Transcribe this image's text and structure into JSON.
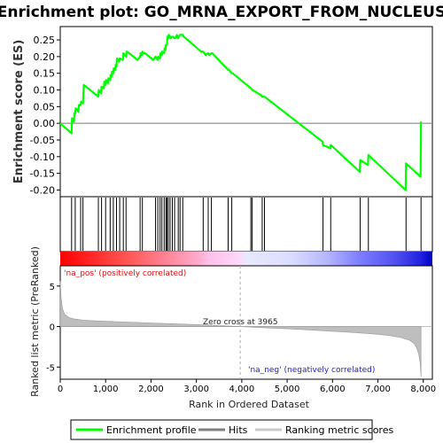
{
  "chart_data": {
    "type": "line",
    "title": "Enrichment plot: GO_MRNA_EXPORT_FROM_NUCLEUS",
    "panels": {
      "enrichment": {
        "ylabel": "Enrichment score (ES)",
        "ylim": [
          -0.22,
          0.29
        ],
        "yticks": [
          -0.2,
          -0.15,
          -0.1,
          -0.05,
          0.0,
          0.05,
          0.1,
          0.15,
          0.2,
          0.25
        ],
        "ytick_labels": [
          "-0.20",
          "-0.15",
          "-0.10",
          "-0.05",
          "0.00",
          "0.05",
          "0.10",
          "0.15",
          "0.20",
          "0.25"
        ],
        "series": [
          {
            "name": "Enrichment profile",
            "color": "#00ff00",
            "x": [
              0,
              250,
              260,
              300,
              310,
              330,
              340,
              400,
              410,
              450,
              460,
              500,
              520,
              840,
              850,
              900,
              910,
              960,
              970,
              1000,
              1010,
              1050,
              1060,
              1100,
              1110,
              1130,
              1140,
              1170,
              1180,
              1210,
              1220,
              1240,
              1250,
              1300,
              1310,
              1380,
              1390,
              1450,
              1460,
              1520,
              1700,
              1760,
              1770,
              1800,
              1810,
              1850,
              1870,
              2050,
              2100,
              2150,
              2160,
              2200,
              2210,
              2240,
              2250,
              2290,
              2300,
              2320,
              2330,
              2350,
              2360,
              2380,
              2390,
              2420,
              2430,
              2470,
              2480,
              2520,
              2530,
              2560,
              2570,
              2600,
              2610,
              2640,
              2650,
              2700,
              2720,
              2850,
              3100,
              3150,
              3200,
              3260,
              3280,
              3330,
              3350,
              3700,
              3720,
              3780,
              3800,
              4200,
              4230,
              4420,
              4450,
              4500,
              5780,
              5790,
              5950,
              5960,
              6600,
              6610,
              6780,
              6790,
              7610,
              7620,
              7940,
              7950
            ],
            "y": [
              0.0,
              -0.03,
              0.015,
              0.005,
              0.03,
              0.03,
              0.045,
              0.035,
              0.055,
              0.055,
              0.065,
              0.06,
              0.115,
              0.08,
              0.1,
              0.09,
              0.11,
              0.105,
              0.125,
              0.115,
              0.13,
              0.12,
              0.135,
              0.13,
              0.145,
              0.14,
              0.155,
              0.15,
              0.165,
              0.16,
              0.175,
              0.17,
              0.195,
              0.185,
              0.195,
              0.19,
              0.21,
              0.2,
              0.215,
              0.21,
              0.19,
              0.2,
              0.21,
              0.205,
              0.215,
              0.21,
              0.21,
              0.19,
              0.2,
              0.19,
              0.2,
              0.195,
              0.21,
              0.205,
              0.215,
              0.21,
              0.225,
              0.22,
              0.235,
              0.235,
              0.26,
              0.255,
              0.265,
              0.26,
              0.255,
              0.26,
              0.26,
              0.255,
              0.255,
              0.26,
              0.265,
              0.255,
              0.26,
              0.265,
              0.265,
              0.265,
              0.26,
              0.245,
              0.215,
              0.215,
              0.205,
              0.21,
              0.205,
              0.21,
              0.21,
              0.16,
              0.16,
              0.15,
              0.15,
              0.105,
              0.1,
              0.085,
              0.08,
              0.08,
              -0.055,
              -0.065,
              -0.075,
              -0.065,
              -0.145,
              -0.11,
              -0.125,
              -0.095,
              -0.2,
              -0.12,
              -0.16,
              0.005
            ]
          }
        ]
      },
      "hits": {
        "series": [
          {
            "name": "Hits",
            "x": [
              250,
              330,
              450,
              500,
              840,
              910,
              1000,
              1100,
              1170,
              1240,
              1310,
              1390,
              1450,
              1760,
              1810,
              2100,
              2150,
              2200,
              2240,
              2290,
              2330,
              2350,
              2380,
              2420,
              2470,
              2520,
              2600,
              2640,
              2700,
              3150,
              3260,
              3330,
              3700,
              3780,
              4200,
              4230,
              4450,
              4500,
              5790,
              5960,
              6610,
              6790,
              7620,
              7950
            ]
          }
        ]
      },
      "ranking": {
        "xlabel": "Rank in Ordered Dataset",
        "ylabel": "Ranked list metric (PreRanked)",
        "ylim": [
          -6.5,
          7.5
        ],
        "yticks": [
          -5,
          0,
          5
        ],
        "ytick_labels": [
          "-5",
          "0",
          "5"
        ],
        "xlim": [
          0,
          8200
        ],
        "xticks": [
          0,
          1000,
          2000,
          3000,
          4000,
          5000,
          6000,
          7000,
          8000
        ],
        "xtick_labels": [
          "0",
          "1,000",
          "2,000",
          "3,000",
          "4,000",
          "5,000",
          "6,000",
          "7,000",
          "8,000"
        ],
        "series": [
          {
            "name": "Ranking metric scores",
            "color": "#bebebe",
            "x": [
              0,
              20,
              50,
              100,
              200,
              300,
              500,
              800,
              1000,
              1500,
              2000,
              2500,
              3000,
              3500,
              3965,
              4500,
              5000,
              5500,
              6000,
              6500,
              7000,
              7300,
              7500,
              7700,
              7800,
              7850,
              7900,
              7930,
              7950
            ],
            "y": [
              5.6,
              3.5,
              2.2,
              1.5,
              1.1,
              0.95,
              0.8,
              0.7,
              0.65,
              0.55,
              0.45,
              0.35,
              0.25,
              0.12,
              0.0,
              -0.15,
              -0.28,
              -0.42,
              -0.58,
              -0.75,
              -0.95,
              -1.15,
              -1.35,
              -1.7,
              -2.1,
              -2.6,
              -3.4,
              -4.5,
              -6.2
            ]
          }
        ],
        "annotations": {
          "pos_label": "'na_pos' (positively correlated)",
          "neg_label": "'na_neg' (negatively correlated)",
          "zero_cross": "Zero cross at 3965",
          "zero_cross_rank": 3965
        }
      }
    },
    "legend": {
      "placement": "bottom",
      "entries": [
        {
          "label": "Enrichment profile",
          "color": "#00ff00"
        },
        {
          "label": "Hits",
          "color": "#808080"
        },
        {
          "label": "Ranking metric scores",
          "color": "#c8c8c8"
        }
      ]
    }
  }
}
